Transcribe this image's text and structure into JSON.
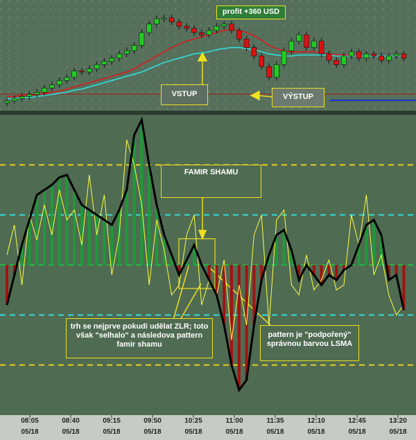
{
  "chart_data": [
    {
      "type": "candlestick",
      "ylim": [
        0,
        100
      ],
      "open": [
        6,
        8,
        10,
        12,
        14,
        16,
        20,
        23,
        27,
        30,
        36,
        35,
        38,
        42,
        45,
        48,
        52,
        55,
        60,
        72,
        80,
        85,
        86,
        82,
        78,
        76,
        72,
        70,
        74,
        78,
        80,
        74,
        66,
        58,
        50,
        40,
        30,
        42,
        55,
        64,
        70,
        58,
        64,
        52,
        46,
        42,
        50,
        54,
        48,
        52,
        50,
        46,
        50,
        52
      ],
      "close": [
        8,
        10,
        12,
        14,
        16,
        20,
        23,
        27,
        30,
        36,
        35,
        38,
        42,
        45,
        48,
        52,
        55,
        60,
        72,
        80,
        85,
        86,
        82,
        78,
        76,
        72,
        70,
        74,
        78,
        80,
        74,
        66,
        58,
        50,
        40,
        30,
        42,
        55,
        64,
        70,
        58,
        64,
        52,
        46,
        42,
        50,
        54,
        48,
        52,
        50,
        46,
        50,
        52,
        48
      ],
      "high": [
        11,
        13,
        15,
        17,
        19,
        23,
        26,
        30,
        33,
        39,
        39,
        41,
        45,
        48,
        51,
        55,
        58,
        63,
        75,
        83,
        88,
        89,
        89,
        85,
        81,
        79,
        75,
        77,
        81,
        83,
        83,
        77,
        69,
        61,
        53,
        43,
        45,
        58,
        67,
        73,
        73,
        67,
        67,
        55,
        49,
        53,
        57,
        57,
        55,
        55,
        53,
        53,
        55,
        55
      ],
      "low": [
        3,
        5,
        7,
        9,
        11,
        13,
        17,
        20,
        24,
        27,
        32,
        32,
        35,
        39,
        42,
        45,
        49,
        52,
        57,
        69,
        77,
        82,
        79,
        75,
        73,
        69,
        67,
        67,
        71,
        75,
        71,
        63,
        55,
        47,
        37,
        27,
        27,
        39,
        52,
        61,
        55,
        55,
        49,
        43,
        39,
        39,
        47,
        45,
        45,
        47,
        43,
        43,
        47,
        45
      ],
      "up_color": "#22cc22",
      "down_color": "#dd1111",
      "ma": [
        {
          "color": "#d81c1c",
          "values": [
            12,
            12,
            13,
            13,
            14,
            15,
            16,
            17,
            19,
            21,
            23,
            25,
            27,
            29,
            31,
            33,
            35,
            38,
            42,
            46,
            50,
            54,
            58,
            61,
            64,
            66,
            68,
            70,
            72,
            74,
            75,
            74,
            72,
            69,
            65,
            60,
            57,
            55,
            54,
            54,
            54,
            54,
            53,
            52,
            51,
            51,
            51,
            50,
            50,
            50,
            50,
            50,
            50,
            50
          ]
        },
        {
          "color": "#33dddd",
          "values": [
            10,
            10,
            11,
            11,
            12,
            13,
            14,
            15,
            16,
            18,
            19,
            21,
            23,
            25,
            27,
            29,
            31,
            33,
            35,
            38,
            41,
            44,
            46,
            48,
            50,
            52,
            53,
            54,
            56,
            57,
            58,
            58,
            57,
            56,
            54,
            52,
            51,
            50,
            50,
            51,
            51,
            51,
            51,
            51,
            50,
            50,
            50,
            50,
            50,
            50,
            50,
            50,
            50,
            50
          ]
        }
      ]
    },
    {
      "type": "oscillator",
      "ylim": [
        -300,
        300
      ],
      "levels": [
        {
          "value": 200,
          "color": "#e8d020"
        },
        {
          "value": 100,
          "color": "#33dddd"
        },
        {
          "value": 0,
          "color": "#22bb44"
        },
        {
          "value": -100,
          "color": "#33dddd"
        },
        {
          "value": -200,
          "color": "#e8d020"
        }
      ],
      "bar_colors": {
        "up": "#1e9a3a",
        "down": "#a31212"
      },
      "series": [
        {
          "color": "#000000",
          "values": [
            -80,
            -20,
            40,
            90,
            140,
            150,
            160,
            175,
            180,
            150,
            120,
            110,
            100,
            90,
            80,
            110,
            150,
            260,
            290,
            200,
            120,
            60,
            20,
            -20,
            10,
            40,
            0,
            -30,
            -60,
            -120,
            -200,
            -250,
            -230,
            -120,
            -30,
            20,
            60,
            70,
            30,
            -30,
            0,
            -20,
            -40,
            -20,
            -30,
            -10,
            0,
            40,
            80,
            90,
            60,
            -30,
            -20,
            -90
          ]
        },
        {
          "color": "#ffff44",
          "values": [
            20,
            80,
            -40,
            100,
            50,
            120,
            60,
            150,
            90,
            110,
            40,
            180,
            60,
            140,
            -20,
            60,
            250,
            200,
            120,
            -40,
            90,
            30,
            -60,
            -40,
            60,
            100,
            -80,
            -30,
            -60,
            10,
            -150,
            -40,
            -120,
            60,
            100,
            -120,
            90,
            110,
            -40,
            -60,
            20,
            -50,
            -30,
            10,
            -50,
            -40,
            100,
            40,
            140,
            -20,
            20,
            -60,
            -100,
            -80
          ]
        }
      ]
    }
  ],
  "time_labels": [
    "08:05",
    "08:40",
    "09:15",
    "09:50",
    "10:25",
    "11:00",
    "11:35",
    "12:10",
    "12:45",
    "13:20"
  ],
  "date_labels": [
    "05/18",
    "05/18",
    "05/18",
    "05/18",
    "05/18",
    "05/18",
    "05/18",
    "05/18",
    "05/18",
    "05/18"
  ],
  "annotations": [
    "profit +360 USD",
    "VSTUP",
    "VÝSTUP",
    "FAMIR SHAMU",
    "trh se nejprve pokudi udělat ZLR; toto však \"selhalo\" a následova pattern famir shamu",
    "pattern je \"podpořený\" správnou barvou LSMA"
  ]
}
